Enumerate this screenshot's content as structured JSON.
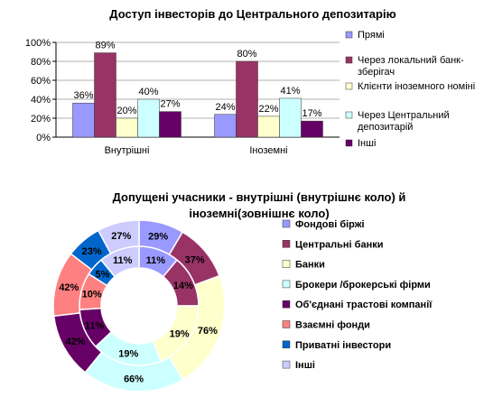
{
  "chart_data": [
    {
      "type": "bar",
      "title": "Доступ інвесторів до Центрального депозитарію",
      "categories": [
        "Внутрішні",
        "Іноземні"
      ],
      "series": [
        {
          "name": "Прямі",
          "color": "#9999FF",
          "values": [
            36,
            24
          ],
          "labels": [
            "36%",
            "24%"
          ]
        },
        {
          "name": "Через локальний банк-зберігач",
          "color": "#993366",
          "values": [
            89,
            80
          ],
          "labels": [
            "89%",
            "80%"
          ]
        },
        {
          "name": "Клієнти іноземного номіні",
          "color": "#FFFFCC",
          "values": [
            20,
            22
          ],
          "labels": [
            "20%",
            "22%"
          ]
        },
        {
          "name": "Через Центральний депозитарій",
          "color": "#CCFFFF",
          "values": [
            40,
            41
          ],
          "labels": [
            "40%",
            "41%"
          ]
        },
        {
          "name": "Інші",
          "color": "#660066",
          "values": [
            27,
            17
          ],
          "labels": [
            "27%",
            "17%"
          ]
        }
      ],
      "ylim": [
        0,
        100
      ],
      "yticks": [
        "0%",
        "20%",
        "40%",
        "60%",
        "80%",
        "100%"
      ],
      "legend": "right"
    },
    {
      "type": "pie",
      "subtype": "doughnut",
      "title": "Допущені учасники - внутрішні (внутрішнє коло) й іноземні(зовнішнє коло)",
      "categories": [
        "Фондові біржі",
        "Центральні банки",
        "Банки",
        "Брокери /брокерські фірми",
        "Об'єднані трастові компанії",
        "Взаємні фонди",
        "Приватні інвестори",
        "Інші"
      ],
      "colors": [
        "#9999FF",
        "#993366",
        "#FFFFCC",
        "#CCFFFF",
        "#660066",
        "#FF8080",
        "#0066CC",
        "#CCCCFF"
      ],
      "series": [
        {
          "ring": "inner",
          "values": [
            11,
            14,
            19,
            19,
            11,
            10,
            5,
            11
          ],
          "labels": [
            "11%",
            "14%",
            "19%",
            "19%",
            "11%",
            "10%",
            "5%",
            "11%"
          ]
        },
        {
          "ring": "outer",
          "values": [
            29,
            37,
            76,
            66,
            42,
            42,
            23,
            27
          ],
          "labels": [
            "29%",
            "37%",
            "76%",
            "66%",
            "42%",
            "42%",
            "23%",
            "27%"
          ]
        }
      ],
      "legend": "right"
    }
  ]
}
